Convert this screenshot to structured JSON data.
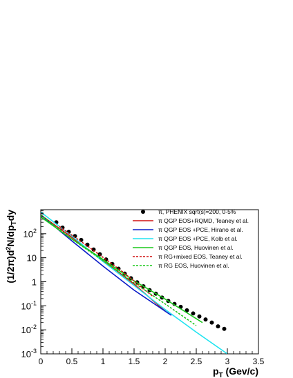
{
  "chart_data": {
    "type": "line",
    "xlabel": "p_T (Gev/c)",
    "ylabel": "(1/2π)d²N/dp_Tdy",
    "xlim": [
      0,
      3.5
    ],
    "ylim": [
      0.001,
      1000
    ],
    "yscale": "log",
    "grid": false,
    "legend_position": "top-right",
    "x_ticks": [
      0,
      0.5,
      1,
      1.5,
      2,
      2.5,
      3,
      3.5
    ],
    "x_tick_labels": [
      "0",
      "0.5",
      "1",
      "1.5",
      "2",
      "2.5",
      "3",
      "3.5"
    ],
    "y_ticks": [
      0.001,
      0.01,
      0.1,
      1,
      10,
      100
    ],
    "y_tick_labels": [
      {
        "base": "10",
        "exp": "-3"
      },
      {
        "base": "10",
        "exp": "-2"
      },
      {
        "base": "10",
        "exp": "-1"
      },
      {
        "base": "1",
        "exp": ""
      },
      {
        "base": "10",
        "exp": ""
      },
      {
        "base": "10",
        "exp": "2"
      }
    ],
    "series": [
      {
        "name": "π, PHENIX sqrt(s)=200, 0-5%",
        "style": "markers",
        "color": "#000000",
        "x": [
          0.25,
          0.35,
          0.45,
          0.55,
          0.65,
          0.75,
          0.85,
          0.95,
          1.05,
          1.15,
          1.25,
          1.35,
          1.45,
          1.55,
          1.65,
          1.75,
          1.85,
          1.95,
          2.05,
          2.15,
          2.25,
          2.35,
          2.45,
          2.55,
          2.65,
          2.75,
          2.85,
          2.95
        ],
        "y": [
          300,
          180,
          120,
          80,
          55,
          35,
          22,
          14,
          8.5,
          5.5,
          3.5,
          2.2,
          1.4,
          0.95,
          0.65,
          0.45,
          0.32,
          0.22,
          0.16,
          0.12,
          0.09,
          0.065,
          0.048,
          0.036,
          0.027,
          0.02,
          0.014,
          0.011
        ]
      },
      {
        "name": "π  QGP EOS+RQMD, Teaney et al.",
        "style": "solid",
        "color": "#d01010",
        "x": [
          0.0,
          0.5,
          1.0,
          1.5,
          2.0
        ],
        "y": [
          600,
          70,
          8,
          0.8,
          0.06
        ]
      },
      {
        "name": "π QGP EOS +PCE, Hirano et al.",
        "style": "solid",
        "color": "#0a1bc8",
        "x": [
          0.0,
          0.5,
          1.0,
          1.5,
          2.1
        ],
        "y": [
          600,
          50,
          4.5,
          0.45,
          0.04
        ]
      },
      {
        "name": "π QGP EOS +PCE, Kolb et al.",
        "style": "solid",
        "color": "#22e4f0",
        "x": [
          0.0,
          0.5,
          1.0,
          1.5,
          2.0,
          2.5,
          3.0
        ],
        "y": [
          800,
          80,
          7,
          0.7,
          0.07,
          0.008,
          0.001
        ]
      },
      {
        "name": "π QGP EOS, Huovinen et al.",
        "style": "solid",
        "color": "#1bc81b",
        "x": [
          0.0,
          0.5,
          1.0,
          1.5,
          2.0,
          2.6
        ],
        "y": [
          500,
          60,
          8.5,
          1.1,
          0.19,
          0.02
        ]
      },
      {
        "name": "π RG+mixed EOS, Teaney et al.",
        "style": "dashed",
        "color": "#d01010",
        "x": [
          0.3,
          0.8,
          1.3,
          1.8
        ],
        "y": [
          200,
          25,
          2.8,
          0.25
        ]
      },
      {
        "name": "π RG EOS, Huovinen et al.",
        "style": "dashed",
        "color": "#1bc81b",
        "x": [
          0.0,
          0.5,
          1.0,
          1.5,
          2.0,
          2.5
        ],
        "y": [
          600,
          60,
          7.5,
          0.9,
          0.12,
          0.015
        ]
      }
    ]
  }
}
